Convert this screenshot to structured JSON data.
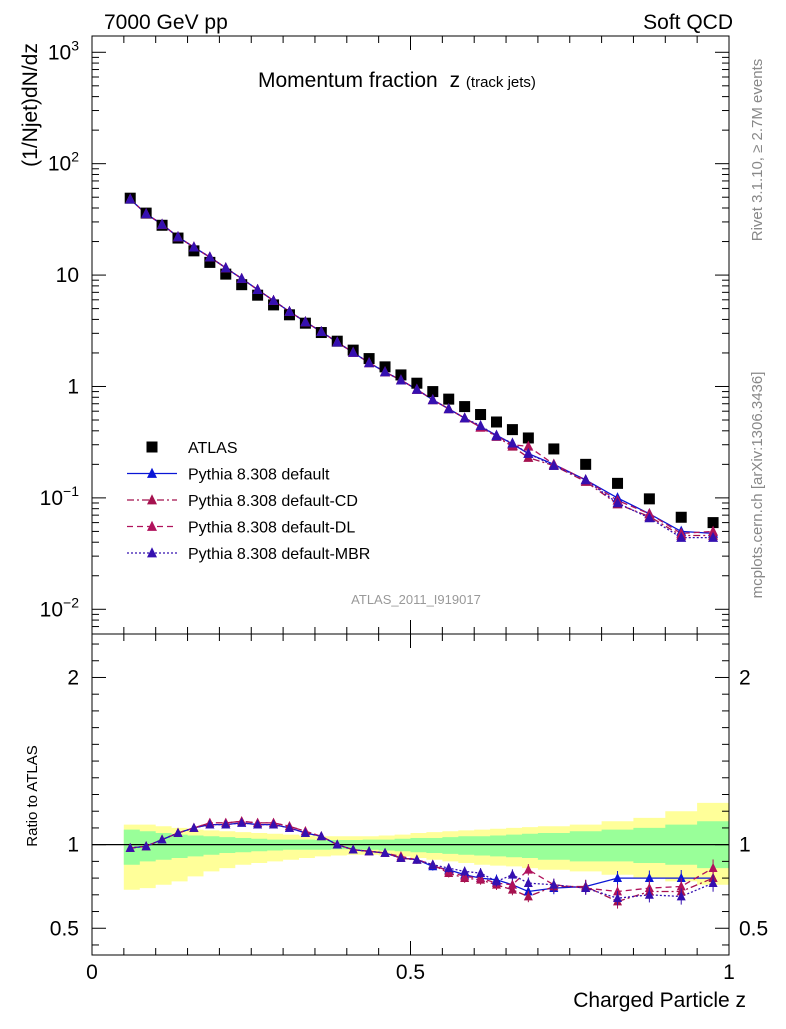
{
  "header": {
    "left": "7000 GeV pp",
    "right": "Soft QCD"
  },
  "side_labels": {
    "rivet": "Rivet 3.1.10, ≥ 2.7M events",
    "mcplots": "mcplots.cern.ch [arXiv:1306.3436]"
  },
  "chart_data": [
    {
      "type": "scatter",
      "title": "Momentum fraction",
      "title_var": "z",
      "title_sub": "(track jets)",
      "ylabel": "(1/Njet)dN/dz",
      "analysis_tag": "ATLAS_2011_I919017",
      "yscale": "log",
      "xlim": [
        0,
        1
      ],
      "ylim": [
        0.006,
        1400
      ],
      "y_ticks": [
        {
          "v": 0.01,
          "base": "10",
          "exp": "−2"
        },
        {
          "v": 0.1,
          "base": "10",
          "exp": "−1"
        },
        {
          "v": 1,
          "base": "1",
          "exp": ""
        },
        {
          "v": 10,
          "base": "10",
          "exp": ""
        },
        {
          "v": 100,
          "base": "10",
          "exp": "2"
        },
        {
          "v": 1000,
          "base": "10",
          "exp": "3"
        }
      ],
      "legend_position": "middle-left",
      "x": [
        0.06,
        0.085,
        0.11,
        0.135,
        0.16,
        0.185,
        0.21,
        0.235,
        0.26,
        0.285,
        0.31,
        0.335,
        0.36,
        0.385,
        0.41,
        0.435,
        0.46,
        0.485,
        0.51,
        0.535,
        0.56,
        0.585,
        0.61,
        0.635,
        0.66,
        0.685,
        0.725,
        0.775,
        0.825,
        0.875,
        0.925,
        0.975
      ],
      "series": [
        {
          "name": "ATLAS",
          "color": "#000000",
          "marker": "square",
          "line": "none",
          "values": [
            49,
            36,
            28,
            21.5,
            16.5,
            13,
            10.2,
            8.2,
            6.6,
            5.4,
            4.4,
            3.7,
            3.05,
            2.55,
            2.12,
            1.78,
            1.5,
            1.27,
            1.07,
            0.9,
            0.77,
            0.66,
            0.56,
            0.48,
            0.41,
            0.345,
            0.275,
            0.2,
            0.135,
            0.098,
            0.067,
            0.06
          ]
        },
        {
          "name": "Pythia 8.308 default",
          "color": "#0a16d6",
          "marker": "triangle",
          "line": "solid",
          "values": [
            48,
            35.5,
            28.5,
            22,
            17.8,
            14.5,
            11.6,
            9.3,
            7.4,
            5.9,
            4.7,
            3.8,
            3.1,
            2.5,
            2.02,
            1.63,
            1.35,
            1.14,
            0.94,
            0.76,
            0.63,
            0.52,
            0.435,
            0.365,
            0.305,
            0.25,
            0.2,
            0.145,
            0.1,
            0.072,
            0.05,
            0.048
          ]
        },
        {
          "name": "Pythia 8.308 default-CD",
          "color": "#a5114e",
          "marker": "triangle",
          "line": "dashdot",
          "values": [
            48,
            35.5,
            28.5,
            22,
            17.8,
            14.5,
            11.6,
            9.3,
            7.4,
            5.9,
            4.7,
            3.8,
            3.1,
            2.5,
            2.02,
            1.63,
            1.35,
            1.14,
            0.94,
            0.76,
            0.63,
            0.52,
            0.43,
            0.355,
            0.29,
            0.23,
            0.195,
            0.14,
            0.088,
            0.068,
            0.046,
            0.046
          ]
        },
        {
          "name": "Pythia 8.308 default-DL",
          "color": "#b0125c",
          "marker": "triangle",
          "line": "dashed",
          "values": [
            48,
            35.5,
            28.5,
            22,
            17.8,
            14.5,
            11.6,
            9.3,
            7.4,
            5.9,
            4.7,
            3.8,
            3.1,
            2.5,
            2.02,
            1.63,
            1.35,
            1.14,
            0.94,
            0.76,
            0.63,
            0.52,
            0.43,
            0.36,
            0.3,
            0.29,
            0.2,
            0.145,
            0.095,
            0.072,
            0.048,
            0.05
          ]
        },
        {
          "name": "Pythia 8.308 default-MBR",
          "color": "#3510b0",
          "marker": "triangle",
          "line": "dotted",
          "values": [
            48,
            35.5,
            28.5,
            22,
            17.8,
            14.5,
            11.6,
            9.3,
            7.4,
            5.9,
            4.7,
            3.8,
            3.1,
            2.5,
            2.02,
            1.63,
            1.35,
            1.14,
            0.94,
            0.76,
            0.63,
            0.52,
            0.445,
            0.36,
            0.31,
            0.25,
            0.195,
            0.145,
            0.09,
            0.066,
            0.044,
            0.044
          ]
        }
      ]
    },
    {
      "type": "scatter",
      "ylabel": "Ratio to ATLAS",
      "xlabel": "Charged Particle z",
      "xlim": [
        0,
        1
      ],
      "ylim": [
        0.34,
        2.26
      ],
      "x_ticks": [
        {
          "v": 0,
          "label": "0"
        },
        {
          "v": 0.5,
          "label": "0.5"
        },
        {
          "v": 1,
          "label": "1"
        }
      ],
      "y_ticks": [
        {
          "v": 0.5,
          "label": "0.5"
        },
        {
          "v": 1,
          "label": "1"
        },
        {
          "v": 2,
          "label": "2"
        }
      ],
      "reference_line": 1,
      "band_edges": [
        0.05,
        0.075,
        0.1,
        0.125,
        0.15,
        0.175,
        0.2,
        0.225,
        0.25,
        0.275,
        0.3,
        0.325,
        0.35,
        0.375,
        0.4,
        0.425,
        0.45,
        0.475,
        0.5,
        0.525,
        0.55,
        0.575,
        0.6,
        0.625,
        0.65,
        0.675,
        0.7,
        0.75,
        0.8,
        0.85,
        0.9,
        0.95,
        1.0
      ],
      "band_inner": {
        "color": "#99ff99",
        "lo": [
          0.88,
          0.9,
          0.91,
          0.92,
          0.93,
          0.94,
          0.95,
          0.955,
          0.96,
          0.965,
          0.97,
          0.97,
          0.97,
          0.972,
          0.972,
          0.97,
          0.965,
          0.96,
          0.955,
          0.95,
          0.945,
          0.94,
          0.935,
          0.93,
          0.925,
          0.92,
          0.91,
          0.9,
          0.9,
          0.89,
          0.88,
          0.86
        ],
        "hi": [
          1.09,
          1.08,
          1.07,
          1.06,
          1.055,
          1.05,
          1.045,
          1.04,
          1.035,
          1.03,
          1.03,
          1.03,
          1.028,
          1.028,
          1.028,
          1.03,
          1.03,
          1.035,
          1.04,
          1.04,
          1.045,
          1.05,
          1.05,
          1.055,
          1.06,
          1.065,
          1.07,
          1.08,
          1.09,
          1.1,
          1.12,
          1.14
        ]
      },
      "band_outer": {
        "color": "#ffff99",
        "lo": [
          0.73,
          0.74,
          0.76,
          0.78,
          0.81,
          0.84,
          0.86,
          0.88,
          0.89,
          0.9,
          0.91,
          0.92,
          0.93,
          0.935,
          0.94,
          0.94,
          0.935,
          0.93,
          0.92,
          0.91,
          0.9,
          0.89,
          0.88,
          0.875,
          0.87,
          0.86,
          0.85,
          0.84,
          0.82,
          0.8,
          0.78,
          0.76
        ],
        "hi": [
          1.12,
          1.12,
          1.11,
          1.1,
          1.09,
          1.085,
          1.08,
          1.075,
          1.07,
          1.065,
          1.06,
          1.055,
          1.05,
          1.05,
          1.05,
          1.05,
          1.055,
          1.06,
          1.07,
          1.075,
          1.08,
          1.085,
          1.09,
          1.095,
          1.1,
          1.105,
          1.11,
          1.12,
          1.14,
          1.16,
          1.2,
          1.25
        ]
      },
      "x": [
        0.06,
        0.085,
        0.11,
        0.135,
        0.16,
        0.185,
        0.21,
        0.235,
        0.26,
        0.285,
        0.31,
        0.335,
        0.36,
        0.385,
        0.41,
        0.435,
        0.46,
        0.485,
        0.51,
        0.535,
        0.56,
        0.585,
        0.61,
        0.635,
        0.66,
        0.685,
        0.725,
        0.775,
        0.825,
        0.875,
        0.925,
        0.975
      ],
      "series": [
        {
          "name": "Pythia 8.308 default",
          "color": "#0a16d6",
          "line": "solid",
          "values": [
            0.98,
            0.99,
            1.03,
            1.07,
            1.1,
            1.12,
            1.12,
            1.13,
            1.12,
            1.12,
            1.1,
            1.07,
            1.05,
            1.0,
            0.97,
            0.96,
            0.95,
            0.92,
            0.91,
            0.87,
            0.85,
            0.82,
            0.8,
            0.79,
            0.76,
            0.72,
            0.74,
            0.75,
            0.8,
            0.8,
            0.8,
            0.8
          ]
        },
        {
          "name": "Pythia 8.308 default-CD",
          "color": "#a5114e",
          "line": "dashdot",
          "values": [
            0.98,
            0.99,
            1.03,
            1.07,
            1.1,
            1.13,
            1.13,
            1.14,
            1.13,
            1.13,
            1.11,
            1.08,
            1.05,
            1.0,
            0.97,
            0.96,
            0.95,
            0.92,
            0.91,
            0.88,
            0.83,
            0.8,
            0.79,
            0.76,
            0.73,
            0.69,
            0.75,
            0.75,
            0.66,
            0.72,
            0.72,
            0.8
          ]
        },
        {
          "name": "Pythia 8.308 default-DL",
          "color": "#b0125c",
          "line": "dashed",
          "values": [
            0.98,
            0.99,
            1.03,
            1.07,
            1.1,
            1.13,
            1.13,
            1.14,
            1.13,
            1.13,
            1.11,
            1.08,
            1.05,
            1.0,
            0.97,
            0.96,
            0.95,
            0.93,
            0.91,
            0.88,
            0.84,
            0.81,
            0.8,
            0.77,
            0.76,
            0.85,
            0.76,
            0.74,
            0.72,
            0.74,
            0.75,
            0.86
          ]
        },
        {
          "name": "Pythia 8.308 default-MBR",
          "color": "#3510b0",
          "line": "dotted",
          "values": [
            0.98,
            0.99,
            1.03,
            1.07,
            1.1,
            1.12,
            1.12,
            1.13,
            1.12,
            1.12,
            1.1,
            1.07,
            1.05,
            1.0,
            0.97,
            0.96,
            0.95,
            0.92,
            0.91,
            0.88,
            0.86,
            0.84,
            0.83,
            0.78,
            0.82,
            0.77,
            0.76,
            0.74,
            0.68,
            0.7,
            0.69,
            0.77
          ]
        }
      ]
    }
  ]
}
